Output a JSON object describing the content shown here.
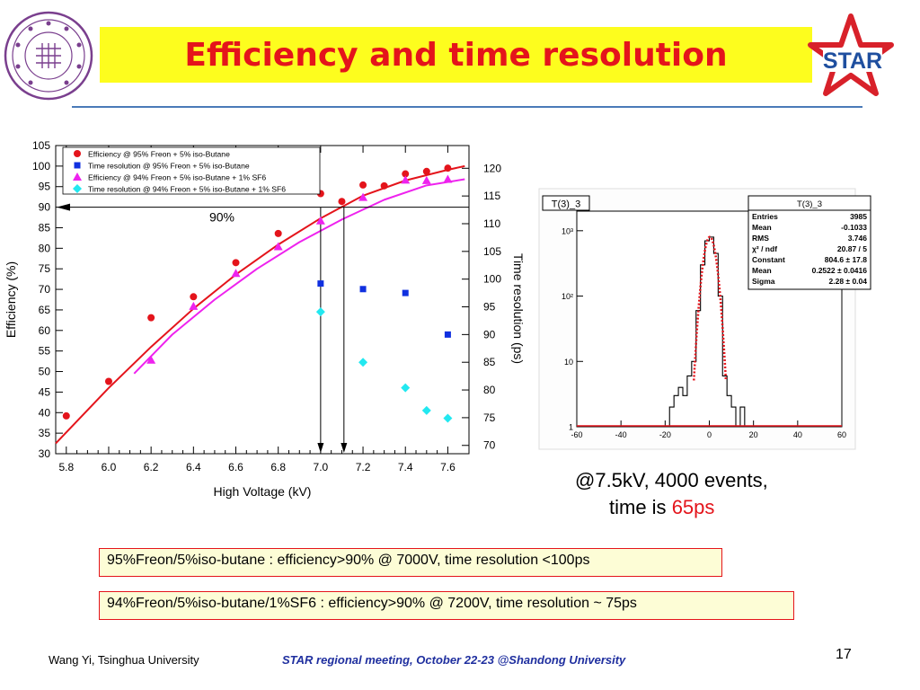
{
  "slide": {
    "title": "Efficiency and time resolution",
    "caption_line1": "@7.5kV, 4000 events,",
    "caption_line2_prefix": "time is ",
    "caption_line2_value": "65ps",
    "box1": "95%Freon/5%iso-butane : efficiency>90% @ 7000V, time resolution <100ps",
    "box2": "94%Freon/5%iso-butane/1%SF6 : efficiency>90% @ 7200V, time resolution ~ 75ps",
    "footer_left": "Wang Yi, Tsinghua University",
    "footer_mid": "STAR regional meeting, October 22-23 @Shandong University",
    "page_number": "17",
    "logo_right_text": "STAR",
    "colors": {
      "title": "#e4141b",
      "banner": "#fdfd1e",
      "rule": "#4a7ab8",
      "footer_mid": "#1f2f9f"
    }
  },
  "chart_data": [
    {
      "type": "scatter",
      "xlabel": "High Voltage (kV)",
      "ylabel": "Efficiency (%)",
      "y2label": "Time resolution (ps)",
      "xlim": [
        5.75,
        7.7
      ],
      "ylim": [
        30,
        105
      ],
      "y2lim": [
        68.5,
        124.1
      ],
      "xticks": [
        5.8,
        6.0,
        6.2,
        6.4,
        6.6,
        6.8,
        7.0,
        7.2,
        7.4,
        7.6
      ],
      "yticks": [
        30,
        35,
        40,
        45,
        50,
        55,
        60,
        65,
        70,
        75,
        80,
        85,
        90,
        95,
        100,
        105
      ],
      "y2ticks": [
        70,
        75,
        80,
        85,
        90,
        95,
        100,
        105,
        110,
        115,
        120
      ],
      "legend_position": "top-left",
      "series": [
        {
          "name": "Efficiency  @ 95% Freon + 5% iso-Butane",
          "marker": "circle",
          "color": "#e4141b",
          "axis": "left",
          "x": [
            5.8,
            6.0,
            6.2,
            6.4,
            6.6,
            6.8,
            7.0,
            7.1,
            7.2,
            7.3,
            7.4,
            7.5,
            7.6
          ],
          "y": [
            39.2,
            47.6,
            63.1,
            68.2,
            76.5,
            83.6,
            93.3,
            91.4,
            95.4,
            95.2,
            98.1,
            98.7,
            99.5
          ]
        },
        {
          "name": "Time resolution @ 95% Freon + 5% iso-Butane",
          "marker": "square",
          "color": "#1030e0",
          "axis": "right",
          "x": [
            7.0,
            7.2,
            7.4,
            7.6
          ],
          "y": [
            99.2,
            98.2,
            97.5,
            90
          ]
        },
        {
          "name": "Efficiency  @ 94% Freon + 5% iso-Butane + 1% SF6",
          "marker": "triangle",
          "color": "#ee22ee",
          "axis": "left",
          "x": [
            6.2,
            6.4,
            6.6,
            6.8,
            7.0,
            7.2,
            7.4,
            7.5,
            7.6
          ],
          "y": [
            52.8,
            65.9,
            73.9,
            80.4,
            86.7,
            92.4,
            96.6,
            96.5,
            96.8
          ]
        },
        {
          "name": "Time resolution @ 94% Freon + 5% iso-Butane + 1% SF6",
          "marker": "diamond",
          "color": "#22e8f0",
          "axis": "right",
          "x": [
            7.0,
            7.2,
            7.4,
            7.5,
            7.6
          ],
          "y": [
            94.1,
            85,
            80.4,
            76.3,
            74.9
          ]
        }
      ],
      "fits": [
        {
          "color": "#e4141b",
          "x": [
            5.75,
            6.0,
            6.2,
            6.4,
            6.6,
            6.8,
            7.0,
            7.2,
            7.4,
            7.6,
            7.68
          ],
          "y": [
            32.5,
            46,
            56,
            65.3,
            73.6,
            80.9,
            87.3,
            92.8,
            96.5,
            99.1,
            100
          ]
        },
        {
          "color": "#ee22ee",
          "x": [
            6.12,
            6.3,
            6.5,
            6.7,
            6.9,
            7.1,
            7.3,
            7.5,
            7.68
          ],
          "y": [
            49.5,
            59,
            67.5,
            75,
            81.5,
            87,
            91.8,
            95.3,
            96.8
          ]
        }
      ],
      "annotation": {
        "text": "90%",
        "y": 90
      },
      "markers": [
        7.0,
        7.11
      ]
    },
    {
      "type": "bar",
      "title": "T(3)_3",
      "xticks": [
        -60,
        -40,
        -20,
        0,
        20,
        40,
        60
      ],
      "xlim": [
        -60,
        60
      ],
      "ylog": true,
      "yticks": [
        "1",
        "10",
        "10²",
        "10³"
      ],
      "ylim_log": [
        0,
        3.3
      ],
      "stats": [
        {
          "label": "Entries",
          "value": "3985"
        },
        {
          "label": "Mean",
          "value": "-0.1033"
        },
        {
          "label": "RMS",
          "value": "3.746"
        },
        {
          "label": "χ² / ndf",
          "value": "20.87 / 5"
        },
        {
          "label": "Constant",
          "value": "804.6 ± 17.8"
        },
        {
          "label": "Mean",
          "value": "0.2522 ± 0.0416"
        },
        {
          "label": "Sigma",
          "value": "2.28 ± 0.04"
        }
      ],
      "fit": {
        "type": "gaussian",
        "constant": 804.6,
        "mean": 0.2522,
        "sigma": 2.28,
        "color": "#e4141b"
      },
      "bins": [
        [
          -60,
          1
        ],
        [
          -58,
          1
        ],
        [
          -56,
          0.5
        ],
        [
          -54,
          1
        ],
        [
          -52,
          0.5
        ],
        [
          -50,
          0.5
        ],
        [
          -48,
          0.5
        ],
        [
          -46,
          0.5
        ],
        [
          -44,
          1
        ],
        [
          -42,
          0.5
        ],
        [
          -40,
          0.5
        ],
        [
          -38,
          1
        ],
        [
          -36,
          0.5
        ],
        [
          -34,
          1
        ],
        [
          -32,
          0.5
        ],
        [
          -30,
          0.5
        ],
        [
          -28,
          1
        ],
        [
          -26,
          0.5
        ],
        [
          -24,
          1
        ],
        [
          -22,
          0.5
        ],
        [
          -20,
          0.5
        ],
        [
          -18,
          2
        ],
        [
          -16,
          3
        ],
        [
          -14,
          4
        ],
        [
          -12,
          3
        ],
        [
          -10,
          6
        ],
        [
          -8,
          10
        ],
        [
          -6,
          60
        ],
        [
          -4,
          300
        ],
        [
          -2,
          700
        ],
        [
          0,
          800
        ],
        [
          2,
          450
        ],
        [
          4,
          100
        ],
        [
          6,
          6
        ],
        [
          8,
          3
        ],
        [
          10,
          2
        ],
        [
          12,
          1
        ],
        [
          14,
          2
        ],
        [
          16,
          1
        ],
        [
          18,
          0.5
        ],
        [
          20,
          1
        ],
        [
          22,
          0.5
        ],
        [
          24,
          1
        ],
        [
          26,
          0.5
        ],
        [
          28,
          0.5
        ],
        [
          30,
          1
        ],
        [
          32,
          0.5
        ],
        [
          34,
          0.5
        ],
        [
          36,
          1
        ],
        [
          38,
          0.5
        ],
        [
          40,
          0.5
        ],
        [
          42,
          1
        ],
        [
          44,
          0.5
        ],
        [
          46,
          0.5
        ],
        [
          48,
          1
        ],
        [
          50,
          0.5
        ],
        [
          52,
          0.5
        ],
        [
          54,
          0.5
        ],
        [
          56,
          0.5
        ],
        [
          58,
          0.5
        ]
      ]
    }
  ]
}
